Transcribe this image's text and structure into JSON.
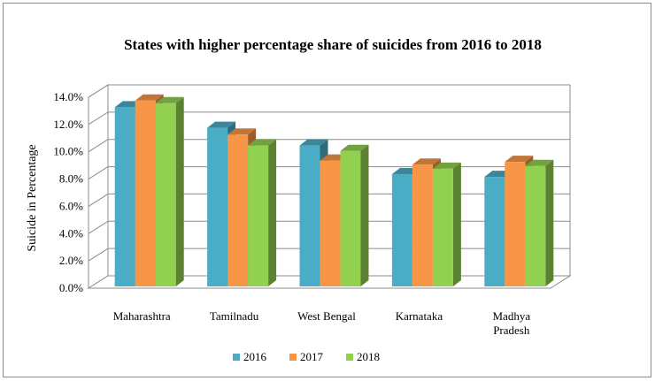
{
  "chart_data": {
    "type": "bar",
    "title": "States with higher percentage share of suicides from 2016 to 2018",
    "xlabel": "",
    "ylabel": "Suicide  in Percentage",
    "ylim": [
      0,
      14
    ],
    "yticks": [
      "0.0%",
      "2.0%",
      "4.0%",
      "6.0%",
      "8.0%",
      "10.0%",
      "12.0%",
      "14.0%"
    ],
    "categories": [
      [
        "Maharashtra"
      ],
      [
        "Tamilnadu"
      ],
      [
        "West Bengal"
      ],
      [
        "Karnataka"
      ],
      [
        "Madhya",
        "Pradesh"
      ]
    ],
    "series": [
      {
        "name": "2016",
        "color": "#4BACC6",
        "values": [
          13.0,
          11.5,
          10.2,
          8.1,
          7.9
        ]
      },
      {
        "name": "2017",
        "color": "#F79646",
        "values": [
          13.5,
          11.0,
          9.1,
          8.8,
          9.0
        ]
      },
      {
        "name": "2018",
        "color": "#92D050",
        "values": [
          13.3,
          10.2,
          9.8,
          8.5,
          8.7
        ]
      }
    ],
    "grid": true,
    "legend": "bottom"
  }
}
